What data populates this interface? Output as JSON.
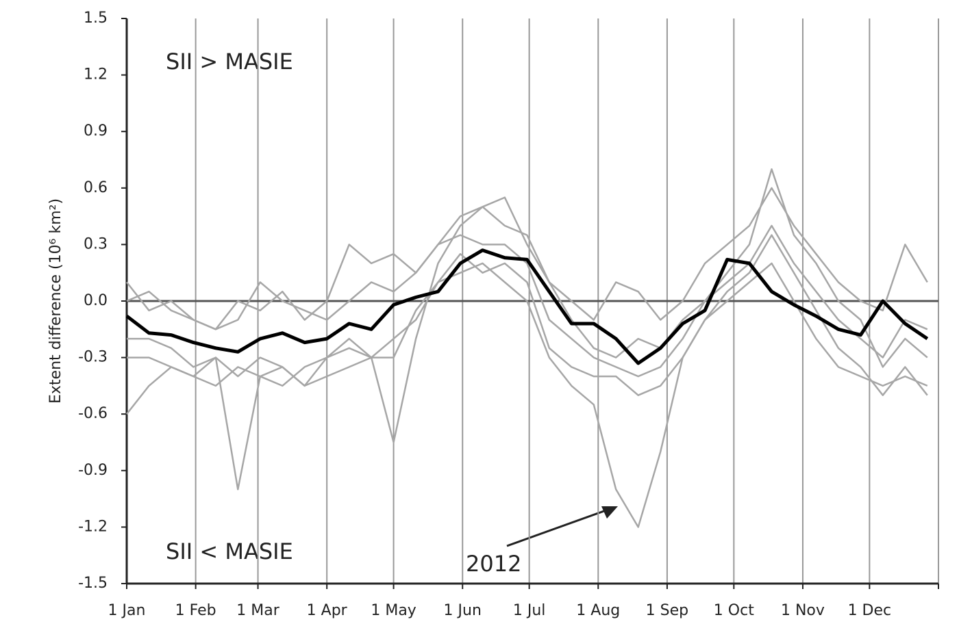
{
  "chart_data": {
    "type": "line",
    "y_label": "Extent difference (10⁶ km²)",
    "annotations": [
      "SII > MASIE",
      "SII < MASIE",
      "2012"
    ],
    "x": [
      1,
      11,
      21,
      31,
      41,
      51,
      61,
      71,
      81,
      91,
      101,
      111,
      121,
      131,
      141,
      151,
      161,
      171,
      181,
      191,
      201,
      211,
      221,
      231,
      241,
      251,
      261,
      271,
      281,
      291,
      301,
      311,
      321,
      331,
      341,
      351,
      361
    ],
    "xlim": [
      1,
      366
    ],
    "xticks": [
      {
        "value": 1,
        "label": "1 Jan"
      },
      {
        "value": 32,
        "label": "1 Feb"
      },
      {
        "value": 60,
        "label": "1 Mar"
      },
      {
        "value": 91,
        "label": "1 Apr"
      },
      {
        "value": 121,
        "label": "1 May"
      },
      {
        "value": 152,
        "label": "1 Jun"
      },
      {
        "value": 182,
        "label": "1 Jul"
      },
      {
        "value": 213,
        "label": "1 Aug"
      },
      {
        "value": 244,
        "label": "1 Sep"
      },
      {
        "value": 274,
        "label": "1 Oct"
      },
      {
        "value": 305,
        "label": "1 Nov"
      },
      {
        "value": 335,
        "label": "1 Dec"
      },
      {
        "value": 366,
        "label": ""
      }
    ],
    "ylim": [
      -1.5,
      1.5
    ],
    "yticks": [
      1.5,
      1.2,
      0.9,
      0.6,
      0.3,
      {
        "value": 0,
        "label": "0.0"
      },
      -0.3,
      -0.6,
      -0.9,
      -1.2,
      -1.5
    ],
    "grid": "x",
    "series": [
      {
        "color": "#a6a6a6",
        "values": [
          0.1,
          -0.05,
          0.0,
          -0.1,
          -0.15,
          0.0,
          -0.05,
          0.05,
          -0.1,
          0.0,
          0.3,
          0.2,
          0.25,
          0.15,
          0.3,
          0.45,
          0.5,
          0.4,
          0.35,
          0.1,
          0.0,
          -0.1,
          0.1,
          0.05,
          -0.1,
          0.0,
          0.2,
          0.3,
          0.4,
          0.6,
          0.4,
          0.25,
          0.1,
          0.0,
          -0.05,
          0.3,
          0.1
        ]
      },
      {
        "color": "#a6a6a6",
        "values": [
          -0.6,
          -0.45,
          -0.35,
          -0.4,
          -0.45,
          -0.35,
          -0.4,
          -0.45,
          -0.35,
          -0.3,
          -0.25,
          -0.3,
          -0.2,
          -0.1,
          0.1,
          0.15,
          0.2,
          0.1,
          0.0,
          -0.3,
          -0.45,
          -0.55,
          -1.0,
          -1.2,
          -0.8,
          -0.3,
          -0.1,
          0.0,
          0.1,
          0.2,
          0.0,
          -0.2,
          -0.35,
          -0.4,
          -0.45,
          -0.4,
          -0.45
        ]
      },
      {
        "color": "#a6a6a6",
        "values": [
          -0.3,
          -0.3,
          -0.35,
          -0.4,
          -0.3,
          -1.0,
          -0.4,
          -0.35,
          -0.45,
          -0.4,
          -0.35,
          -0.3,
          -0.75,
          -0.2,
          0.2,
          0.4,
          0.5,
          0.55,
          0.3,
          0.1,
          -0.1,
          -0.25,
          -0.3,
          -0.2,
          -0.25,
          -0.1,
          0.0,
          0.15,
          0.3,
          0.7,
          0.35,
          0.2,
          0.0,
          -0.1,
          -0.35,
          -0.2,
          -0.3
        ]
      },
      {
        "color": "#a6a6a6",
        "values": [
          0.0,
          0.05,
          -0.05,
          -0.1,
          -0.15,
          -0.1,
          0.1,
          0.0,
          -0.05,
          -0.1,
          0.0,
          0.1,
          0.05,
          0.15,
          0.3,
          0.35,
          0.3,
          0.3,
          0.2,
          -0.1,
          -0.2,
          -0.3,
          -0.35,
          -0.4,
          -0.35,
          -0.2,
          0.0,
          0.1,
          0.2,
          0.4,
          0.2,
          0.05,
          -0.1,
          -0.2,
          -0.3,
          -0.1,
          -0.15
        ]
      },
      {
        "color": "#a6a6a6",
        "values": [
          -0.2,
          -0.2,
          -0.25,
          -0.35,
          -0.3,
          -0.4,
          -0.3,
          -0.35,
          -0.45,
          -0.3,
          -0.2,
          -0.3,
          -0.3,
          -0.05,
          0.1,
          0.25,
          0.15,
          0.2,
          0.1,
          -0.25,
          -0.35,
          -0.4,
          -0.4,
          -0.5,
          -0.45,
          -0.3,
          -0.1,
          0.05,
          0.15,
          0.35,
          0.15,
          -0.05,
          -0.25,
          -0.35,
          -0.5,
          -0.35,
          -0.5
        ]
      },
      {
        "color": "#000000",
        "values": [
          -0.08,
          -0.17,
          -0.18,
          -0.22,
          -0.25,
          -0.27,
          -0.2,
          -0.17,
          -0.22,
          -0.2,
          -0.12,
          -0.15,
          -0.02,
          0.02,
          0.05,
          0.2,
          0.27,
          0.23,
          0.22,
          0.05,
          -0.12,
          -0.12,
          -0.2,
          -0.33,
          -0.25,
          -0.12,
          -0.05,
          0.22,
          0.2,
          0.05,
          -0.02,
          -0.08,
          -0.15,
          -0.18,
          0.0,
          -0.12,
          -0.2
        ]
      }
    ]
  }
}
